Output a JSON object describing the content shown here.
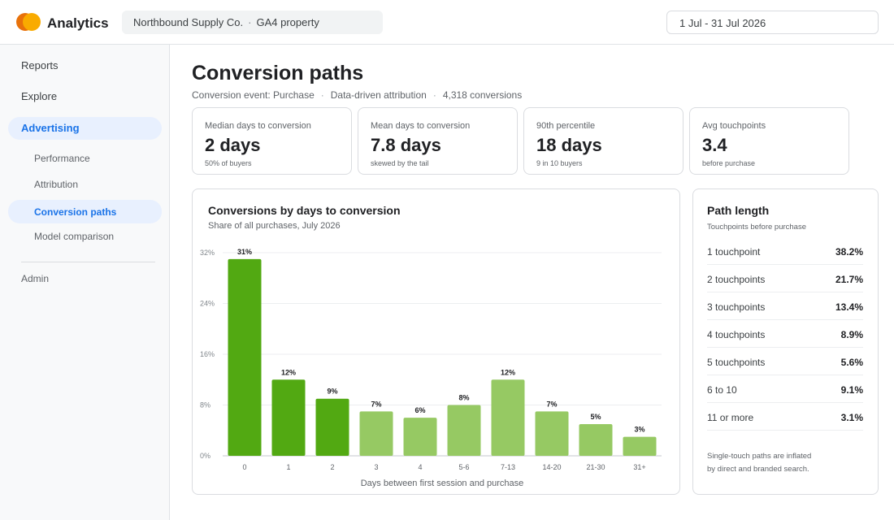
{
  "app": {
    "title": "Analytics"
  },
  "header": {
    "property_org": "Northbound Supply Co.",
    "property_sep": "·",
    "property_name": "GA4 property",
    "date_range": "1 Jul - 31 Jul 2026"
  },
  "sidebar": {
    "items": [
      {
        "label": "Reports",
        "active": false
      },
      {
        "label": "Explore",
        "active": false
      },
      {
        "label": "Advertising",
        "active": true
      }
    ],
    "subitems": [
      {
        "label": "Performance",
        "active": false
      },
      {
        "label": "Attribution",
        "active": false
      },
      {
        "label": "Conversion paths",
        "active": true
      },
      {
        "label": "Model comparison",
        "active": false
      }
    ],
    "admin": "Admin"
  },
  "page": {
    "title": "Conversion paths",
    "conversion_event": "Conversion event: Purchase",
    "model": "Data-driven attribution",
    "conversions": "4,318 conversions",
    "sep": "·"
  },
  "kpis": [
    {
      "label": "Median days to conversion",
      "value": "2 days",
      "note": "50% of buyers"
    },
    {
      "label": "Mean days to conversion",
      "value": "7.8 days",
      "note": "skewed by the tail"
    },
    {
      "label": "90th percentile",
      "value": "18 days",
      "note": "9 in 10 buyers"
    },
    {
      "label": "Avg touchpoints",
      "value": "3.4",
      "note": "before purchase"
    }
  ],
  "colors": {
    "accent": "#1a73e8",
    "bar_highlight": "#52a912",
    "bar_default": "#96c963"
  },
  "chart_data": {
    "type": "bar",
    "title": "Conversions by days to conversion",
    "subtitle": "Share of all purchases, July 2026",
    "xlabel": "Days between first session and purchase",
    "ylabel": "",
    "categories": [
      "0",
      "1",
      "2",
      "3",
      "4",
      "5-6",
      "7-13",
      "14-20",
      "21-30",
      "31+"
    ],
    "values": [
      31,
      12,
      9,
      7,
      6,
      8,
      12,
      7,
      5,
      3
    ],
    "value_labels": [
      "31%",
      "12%",
      "9%",
      "7%",
      "6%",
      "8%",
      "12%",
      "7%",
      "5%",
      "3%"
    ],
    "highlighted": [
      true,
      true,
      true,
      false,
      false,
      false,
      false,
      false,
      false,
      false
    ],
    "yticks": [
      0,
      8,
      16,
      24,
      32
    ],
    "ytick_labels": [
      "0%",
      "8%",
      "16%",
      "24%",
      "32%"
    ],
    "ylim": [
      0,
      32
    ],
    "grid": true,
    "legend": "none"
  },
  "path_length": {
    "title": "Path length",
    "subtitle": "Touchpoints before purchase",
    "rows": [
      {
        "label": "1 touchpoint",
        "value": "38.2%"
      },
      {
        "label": "2 touchpoints",
        "value": "21.7%"
      },
      {
        "label": "3 touchpoints",
        "value": "13.4%"
      },
      {
        "label": "4 touchpoints",
        "value": "8.9%"
      },
      {
        "label": "5 touchpoints",
        "value": "5.6%"
      },
      {
        "label": "6 to 10",
        "value": "9.1%"
      },
      {
        "label": "11 or more",
        "value": "3.1%"
      }
    ],
    "note_line1": "Single-touch paths are inflated",
    "note_line2": "by direct and branded search."
  }
}
